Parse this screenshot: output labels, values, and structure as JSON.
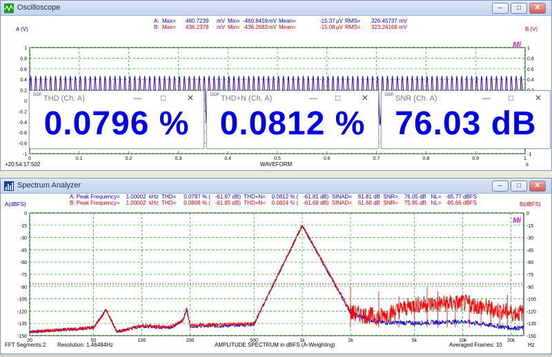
{
  "oscilloscope": {
    "title": "Oscilloscope",
    "left_axis_title": "A (V)",
    "right_axis_title": "B (V)",
    "x_axis_title": "WAVEFORM",
    "x_unit": "s",
    "timestamp": "+20:54:17:502",
    "mi_label": "Mi",
    "stats": {
      "a_label": "A:",
      "b_label": "B:",
      "max_label": "Max=",
      "min_label": "Min=",
      "mean_label": "Mean=",
      "rms_label": "RMS=",
      "a_max": "460.7239",
      "a_min": "-460.8459",
      "a_mean": "-15.37",
      "a_rms": "326.45737",
      "b_max": "436.2378",
      "b_min": "-436.2683",
      "b_mean": "-15.08",
      "b_rms": "323.24168",
      "unit_mv": "mV",
      "unit_uv": "µV"
    },
    "y_ticks": [
      "1",
      "0.8",
      "0.6",
      "0.4",
      "0.2",
      "0",
      "-0.2",
      "-0.4",
      "-0.6",
      "-0.8",
      "-1"
    ],
    "x_ticks": [
      "0",
      "0.1",
      "0.2",
      "0.3",
      "0.4",
      "0.5",
      "0.6",
      "0.7",
      "0.8",
      "0.9",
      "1"
    ],
    "window_buttons": [
      "–",
      "□",
      "✕"
    ]
  },
  "popups": [
    {
      "title": "THD (Ch. A)",
      "value": "0.0796 %"
    },
    {
      "title": "THD+N (Ch. A)",
      "value": "0.0812 %"
    },
    {
      "title": "SNR (Ch. A)",
      "value": "76.03 dB"
    }
  ],
  "popup_icon_text": "DDP",
  "popup_buttons": [
    "—",
    "□",
    "✕"
  ],
  "spectrum": {
    "title": "Spectrum Analyzer",
    "left_axis_title": "A(dBFS)",
    "right_axis_title": "B(dBFS)",
    "x_axis_title": "AMPLITUDE SPECTRUM in dBFS (A-Weighting)",
    "x_unit": "Hz",
    "mi_label": "Mi",
    "fft_segments": "FFT Segments:2",
    "resolution": "Resolution:  1.46484Hz",
    "averaged_frames": "Averaged Frames: 10",
    "row_a": "A: Peak Frequency=    1.00002  kHz  THD=     0.0797 % (   -61.97 dB)  THD+N=    0.0812 % (   -61.81 dB)  SINAD=    61.81 dB  SNR=    76.05 dB   NL=   -85.77 dBFS",
    "row_b": "B: Peak Frequency=    1.00002  kHz  THD=     0.0808 % (   -61.85 dB)  THD+N=    0.0824 % (   -61.68 dB)  SINAD=    61.68 dB  SNR=    75.85 dB   NL=   -85.66 dBFS",
    "y_ticks_left": [
      "0",
      "-15",
      "-30",
      "-45",
      "-60",
      "-75",
      "-90",
      "-105",
      "-120",
      "-135",
      "-150"
    ],
    "y_ticks_right": [
      "0",
      "-15",
      "-30",
      "-45",
      "-60",
      "-75",
      "-90",
      "-105",
      "-120",
      "-135",
      "-150"
    ],
    "x_ticks": [
      "20",
      "50",
      "100",
      "200",
      "500",
      "1k",
      "2k",
      "5k",
      "10k",
      "20k"
    ],
    "window_buttons": [
      "–",
      "□",
      "✕"
    ]
  },
  "chart_data": [
    {
      "type": "line",
      "ylabel": "A (V)",
      "y2label": "B (V)",
      "xlabel": "WAVEFORM",
      "xlim": [
        0,
        1
      ],
      "ylim": [
        -1,
        1
      ],
      "series": [
        {
          "name": "A",
          "color": "#0000ff",
          "amplitude": 0.4607,
          "frequency_hz": 1000
        },
        {
          "name": "B",
          "color": "#ff0000",
          "amplitude": 0.4362,
          "frequency_hz": 1000
        }
      ]
    },
    {
      "type": "line",
      "ylabel": "A(dBFS)",
      "y2label": "B(dBFS)",
      "xlabel": "AMPLITUDE SPECTRUM in dBFS (A-Weighting)",
      "x_scale": "log",
      "xlim": [
        20,
        24000
      ],
      "ylim": [
        -150,
        0
      ],
      "noise_level_line": -86,
      "series": [
        {
          "name": "A",
          "color": "#0000cc",
          "x": [
            20,
            50,
            60,
            70,
            100,
            150,
            180,
            190,
            200,
            300,
            500,
            1000,
            2000,
            3000,
            5000,
            10000,
            20000
          ],
          "y": [
            -145,
            -140,
            -118,
            -145,
            -138,
            -140,
            -132,
            -118,
            -138,
            -138,
            -136,
            -15,
            -122,
            -133,
            -134,
            -132,
            -140
          ]
        },
        {
          "name": "B",
          "color": "#ff0000",
          "x": [
            20,
            50,
            60,
            70,
            100,
            150,
            180,
            190,
            200,
            300,
            500,
            1000,
            2000,
            3000,
            5000,
            10000,
            20000
          ],
          "y": [
            -145,
            -140,
            -118,
            -145,
            -137,
            -139,
            -131,
            -116,
            -137,
            -136,
            -135,
            -15,
            -120,
            -125,
            -110,
            -108,
            -120
          ]
        }
      ]
    }
  ],
  "colors": {
    "grid": "#00b000",
    "series_a": "#0000ff",
    "series_b": "#ff0000",
    "value_text": "#0000e6",
    "mi_label": "#cc22cc"
  }
}
